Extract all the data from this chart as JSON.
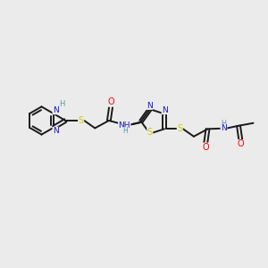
{
  "background_color": "#ebebeb",
  "bond_color": "#1a1a1a",
  "colors": {
    "N": "#1414cc",
    "S": "#cccc00",
    "O": "#ff0000",
    "H": "#5599aa",
    "C": "#1a1a1a"
  },
  "figsize": [
    3.0,
    3.0
  ],
  "dpi": 100
}
